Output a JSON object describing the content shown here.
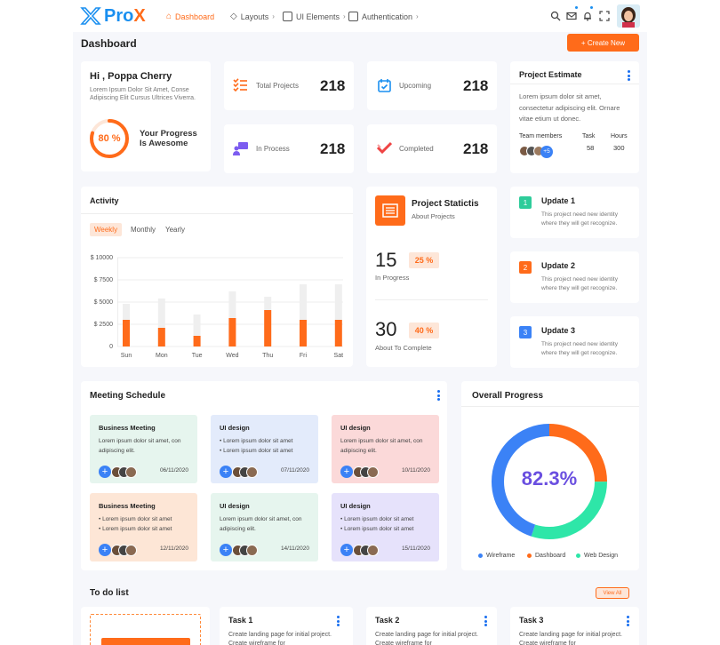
{
  "brand": {
    "pro": "Pro",
    "x": "X"
  },
  "nav": [
    {
      "label": "Dashboard"
    },
    {
      "label": "Layouts"
    },
    {
      "label": "UI Elements"
    },
    {
      "label": "Authentication"
    }
  ],
  "page_title": "Dashboard",
  "create_button": "+ Create New",
  "welcome": {
    "title": "Hi , Poppa Cherry",
    "desc": "Lorem Ipsum Dolor Sit Amet, Conse Adipiscing Elit Cursus Ultrices Viverra.",
    "progress_value": 80,
    "progress_label": "80 %",
    "progress_text_1": "Your Progress",
    "progress_text_2": "Is Awesome"
  },
  "stats": [
    {
      "label": "Total Projects",
      "value": "218",
      "color": "#ff6b1a"
    },
    {
      "label": "Upcoming",
      "value": "218",
      "color": "#1a8ff0"
    },
    {
      "label": "In Process",
      "value": "218",
      "color": "#7c5cf0"
    },
    {
      "label": "Completed",
      "value": "218",
      "color": "#ef4444"
    }
  ],
  "estimate": {
    "title": "Project Estimate",
    "desc": "Lorem ipsum dolor sit amet, consectetur adipiscing elit. Ornare vitae etium ut donec.",
    "col1": "Team members",
    "col2": "Task",
    "col3": "Hours",
    "task": "58",
    "hours": "300",
    "more": "+5"
  },
  "activity": {
    "title": "Activity",
    "tabs": [
      "Weekly",
      "Monthly",
      "Yearly"
    ]
  },
  "chart_data": {
    "type": "bar",
    "title": "Activity",
    "categories": [
      "Sun",
      "Mon",
      "Tue",
      "Wed",
      "Thu",
      "Fri",
      "Sat"
    ],
    "y_ticks": [
      "$ 10000",
      "$ 7500",
      "$ 5000",
      "$ 2500",
      "0"
    ],
    "ylim": [
      0,
      10000
    ],
    "series": [
      {
        "values": [
          3000,
          2100,
          1200,
          3200,
          4100,
          3000,
          3000
        ],
        "color": "#ff6b1a"
      },
      {
        "values": [
          4800,
          5400,
          3600,
          6200,
          5600,
          7000,
          7000
        ],
        "color": "#efefef"
      }
    ],
    "grid": true
  },
  "statistics": {
    "title": "Project Statictis",
    "subtitle": "About Projects",
    "in_progress_value": "15",
    "in_progress_pct": "25 %",
    "in_progress_label": "In Progress",
    "complete_value": "30",
    "complete_pct": "40 %",
    "complete_label": "About To Complete"
  },
  "updates": [
    {
      "num": "1",
      "title": "Update 1",
      "desc": "This project need new identity where they will get recognize.",
      "color": "#2ecc9a"
    },
    {
      "num": "2",
      "title": "Update 2",
      "desc": "This project need new identity where they will get recognize.",
      "color": "#ff6b1a"
    },
    {
      "num": "3",
      "title": "Update 3",
      "desc": "This project need new identity where they will get recognize.",
      "color": "#3b82f6"
    }
  ],
  "meetings": {
    "title": "Meeting Schedule",
    "items": [
      {
        "title": "Business Meeting",
        "lines": [
          "Lorem ipsum dolor sit amet, con adipiscing elit."
        ],
        "date": "06/11/2020",
        "bg": "#e6f5ee"
      },
      {
        "title": "UI design",
        "lines": [
          "• Lorem ipsum dolor sit amet",
          "• Lorem ipsum dolor sit amet"
        ],
        "date": "07/11/2020",
        "bg": "#e3ebfb"
      },
      {
        "title": "UI design",
        "lines": [
          "Lorem ipsum dolor sit amet, con adipiscing elit."
        ],
        "date": "10/11/2020",
        "bg": "#fbd9d9"
      },
      {
        "title": "Business Meeting",
        "lines": [
          "• Lorem ipsum dolor sit amet",
          "• Lorem ipsum dolor sit amet"
        ],
        "date": "12/11/2020",
        "bg": "#fde6d6"
      },
      {
        "title": "UI design",
        "lines": [
          "Lorem ipsum dolor sit amet, con adipiscing elit."
        ],
        "date": "14/11/2020",
        "bg": "#e6f5ee"
      },
      {
        "title": "UI design",
        "lines": [
          "• Lorem ipsum dolor sit amet",
          "• Lorem ipsum dolor sit amet"
        ],
        "date": "15/11/2020",
        "bg": "#e6e2fb"
      }
    ]
  },
  "overall": {
    "title": "Overall Progress",
    "value": "82.3%",
    "segments": [
      {
        "name": "Wireframe",
        "fraction": 0.45,
        "color": "#3b82f6"
      },
      {
        "name": "Dashboard",
        "fraction": 0.25,
        "color": "#ff6b1a"
      },
      {
        "name": "Web Design",
        "fraction": 0.3,
        "color": "#2ee6a8"
      }
    ]
  },
  "todo": {
    "title": "To do list",
    "view_all": "View All",
    "tasks": [
      {
        "title": "Task 1",
        "desc": "Create landing page for initial project. Create wireframe for"
      },
      {
        "title": "Task 2",
        "desc": "Create landing page for initial project. Create wireframe for"
      },
      {
        "title": "Task 3",
        "desc": "Create landing page for initial project. Create wireframe for"
      }
    ]
  }
}
